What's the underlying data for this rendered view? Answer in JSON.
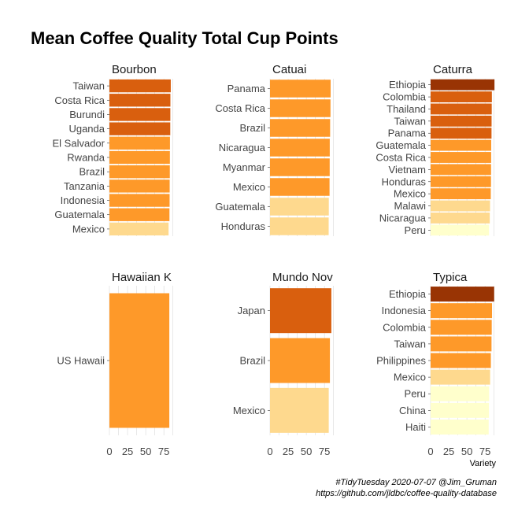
{
  "chart_data": {
    "type": "bar",
    "orientation": "horizontal",
    "title": "Mean Coffee Quality Total Cup Points",
    "xlabel": "",
    "ylabel": "Variety",
    "xlim": [
      0,
      90
    ],
    "xticks": [
      "0",
      "25",
      "50",
      "75"
    ],
    "grid": true,
    "caption": [
      "#TidyTuesday 2020-07-07 @Jim_Gruman",
      "https://github.com/jldbc/coffee-quality-database"
    ],
    "palette": [
      "#ffffcc",
      "#fed98e",
      "#fe9929",
      "#d95f0e",
      "#993404"
    ],
    "facets": [
      {
        "name": "Bourbon",
        "bars": [
          {
            "label": "Taiwan",
            "value": 84.5,
            "color": "#d95f0e"
          },
          {
            "label": "Costa Rica",
            "value": 84.0,
            "color": "#d95f0e"
          },
          {
            "label": "Burundi",
            "value": 83.9,
            "color": "#d95f0e"
          },
          {
            "label": "Uganda",
            "value": 83.8,
            "color": "#d95f0e"
          },
          {
            "label": "El Salvador",
            "value": 83.4,
            "color": "#fe9929"
          },
          {
            "label": "Rwanda",
            "value": 83.3,
            "color": "#fe9929"
          },
          {
            "label": "Brazil",
            "value": 83.2,
            "color": "#fe9929"
          },
          {
            "label": "Tanzania",
            "value": 83.0,
            "color": "#fe9929"
          },
          {
            "label": "Indonesia",
            "value": 82.9,
            "color": "#fe9929"
          },
          {
            "label": "Guatemala",
            "value": 82.7,
            "color": "#fe9929"
          },
          {
            "label": "Mexico",
            "value": 81.5,
            "color": "#fed98e"
          }
        ]
      },
      {
        "name": "Catuai",
        "bars": [
          {
            "label": "Panama",
            "value": 83.5,
            "color": "#fe9929"
          },
          {
            "label": "Costa Rica",
            "value": 83.3,
            "color": "#fe9929"
          },
          {
            "label": "Brazil",
            "value": 82.8,
            "color": "#fe9929"
          },
          {
            "label": "Nicaragua",
            "value": 82.3,
            "color": "#fe9929"
          },
          {
            "label": "Myanmar",
            "value": 82.2,
            "color": "#fe9929"
          },
          {
            "label": "Mexico",
            "value": 82.0,
            "color": "#fe9929"
          },
          {
            "label": "Guatemala",
            "value": 81.0,
            "color": "#fed98e"
          },
          {
            "label": "Honduras",
            "value": 80.8,
            "color": "#fed98e"
          }
        ]
      },
      {
        "name": "Caturra",
        "bars": [
          {
            "label": "Ethiopia",
            "value": 88.0,
            "color": "#993404"
          },
          {
            "label": "Colombia",
            "value": 84.4,
            "color": "#d95f0e"
          },
          {
            "label": "Thailand",
            "value": 84.2,
            "color": "#d95f0e"
          },
          {
            "label": "Taiwan",
            "value": 84.0,
            "color": "#d95f0e"
          },
          {
            "label": "Panama",
            "value": 83.9,
            "color": "#d95f0e"
          },
          {
            "label": "Guatemala",
            "value": 83.5,
            "color": "#fe9929"
          },
          {
            "label": "Costa Rica",
            "value": 83.4,
            "color": "#fe9929"
          },
          {
            "label": "Vietnam",
            "value": 83.3,
            "color": "#fe9929"
          },
          {
            "label": "Honduras",
            "value": 83.2,
            "color": "#fe9929"
          },
          {
            "label": "Mexico",
            "value": 82.9,
            "color": "#fe9929"
          },
          {
            "label": "Malawi",
            "value": 81.9,
            "color": "#fed98e"
          },
          {
            "label": "Nicaragua",
            "value": 81.5,
            "color": "#fed98e"
          },
          {
            "label": "Peru",
            "value": 80.5,
            "color": "#ffffcc"
          }
        ]
      },
      {
        "name": "Hawaiian K",
        "bars": [
          {
            "label": "US Hawaii",
            "value": 82.5,
            "color": "#fe9929"
          }
        ]
      },
      {
        "name": "Mundo Nov",
        "bars": [
          {
            "label": "Japan",
            "value": 84.5,
            "color": "#d95f0e"
          },
          {
            "label": "Brazil",
            "value": 82.5,
            "color": "#fe9929"
          },
          {
            "label": "Mexico",
            "value": 80.9,
            "color": "#fed98e"
          }
        ]
      },
      {
        "name": "Typica",
        "bars": [
          {
            "label": "Ethiopia",
            "value": 87.5,
            "color": "#993404"
          },
          {
            "label": "Indonesia",
            "value": 84.6,
            "color": "#fe9929"
          },
          {
            "label": "Colombia",
            "value": 84.2,
            "color": "#fe9929"
          },
          {
            "label": "Taiwan",
            "value": 83.9,
            "color": "#fe9929"
          },
          {
            "label": "Philippines",
            "value": 83.0,
            "color": "#fe9929"
          },
          {
            "label": "Mexico",
            "value": 82.0,
            "color": "#fed98e"
          },
          {
            "label": "Peru",
            "value": 80.6,
            "color": "#ffffcc"
          },
          {
            "label": "China",
            "value": 80.4,
            "color": "#ffffcc"
          },
          {
            "label": "Haiti",
            "value": 80.0,
            "color": "#ffffcc"
          }
        ]
      }
    ]
  }
}
